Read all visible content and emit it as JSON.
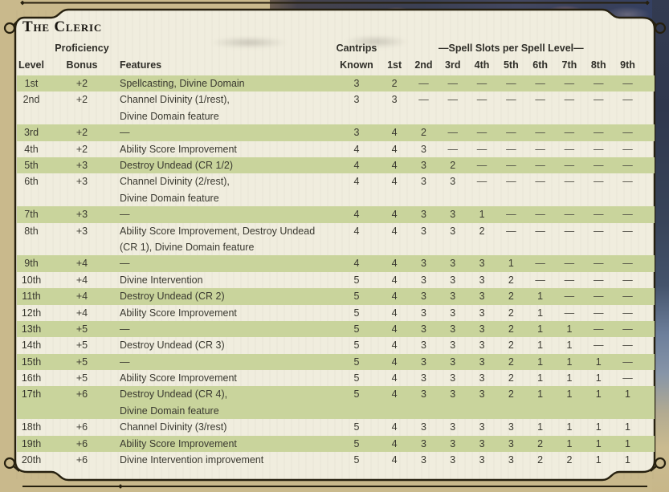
{
  "title": "The Cleric",
  "header": {
    "level": "Level",
    "proficiency": [
      "Proficiency",
      "Bonus"
    ],
    "features": "Features",
    "cantrips": [
      "Cantrips",
      "Known"
    ],
    "spell_slots_title": "—Spell Slots per Spell Level—",
    "slot_levels": [
      "1st",
      "2nd",
      "3rd",
      "4th",
      "5th",
      "6th",
      "7th",
      "8th",
      "9th"
    ]
  },
  "rows": [
    {
      "level": "1st",
      "bonus": "+2",
      "features": [
        "Spellcasting, Divine Domain"
      ],
      "cantrips": "3",
      "slots": [
        "2",
        "—",
        "—",
        "—",
        "—",
        "—",
        "—",
        "—",
        "—"
      ],
      "shaded": true
    },
    {
      "level": "2nd",
      "bonus": "+2",
      "features": [
        "Channel Divinity (1/rest),",
        "Divine Domain feature"
      ],
      "cantrips": "3",
      "slots": [
        "3",
        "—",
        "—",
        "—",
        "—",
        "—",
        "—",
        "—",
        "—"
      ],
      "shaded": false
    },
    {
      "level": "3rd",
      "bonus": "+2",
      "features": [
        "—"
      ],
      "cantrips": "3",
      "slots": [
        "4",
        "2",
        "—",
        "—",
        "—",
        "—",
        "—",
        "—",
        "—"
      ],
      "shaded": true
    },
    {
      "level": "4th",
      "bonus": "+2",
      "features": [
        "Ability Score Improvement"
      ],
      "cantrips": "4",
      "slots": [
        "4",
        "3",
        "—",
        "—",
        "—",
        "—",
        "—",
        "—",
        "—"
      ],
      "shaded": false
    },
    {
      "level": "5th",
      "bonus": "+3",
      "features": [
        "Destroy Undead (CR 1/2)"
      ],
      "cantrips": "4",
      "slots": [
        "4",
        "3",
        "2",
        "—",
        "—",
        "—",
        "—",
        "—",
        "—"
      ],
      "shaded": true
    },
    {
      "level": "6th",
      "bonus": "+3",
      "features": [
        "Channel Divinity (2/rest),",
        "Divine Domain feature"
      ],
      "cantrips": "4",
      "slots": [
        "4",
        "3",
        "3",
        "—",
        "—",
        "—",
        "—",
        "—",
        "—"
      ],
      "shaded": false
    },
    {
      "level": "7th",
      "bonus": "+3",
      "features": [
        "—"
      ],
      "cantrips": "4",
      "slots": [
        "4",
        "3",
        "3",
        "1",
        "—",
        "—",
        "—",
        "—",
        "—"
      ],
      "shaded": true
    },
    {
      "level": "8th",
      "bonus": "+3",
      "features": [
        "Ability Score Improvement, Destroy Undead",
        "(CR 1), Divine Domain feature"
      ],
      "cantrips": "4",
      "slots": [
        "4",
        "3",
        "3",
        "2",
        "—",
        "—",
        "—",
        "—",
        "—"
      ],
      "shaded": false
    },
    {
      "level": "9th",
      "bonus": "+4",
      "features": [
        "—"
      ],
      "cantrips": "4",
      "slots": [
        "4",
        "3",
        "3",
        "3",
        "1",
        "—",
        "—",
        "—",
        "—"
      ],
      "shaded": true
    },
    {
      "level": "10th",
      "bonus": "+4",
      "features": [
        "Divine Intervention"
      ],
      "cantrips": "5",
      "slots": [
        "4",
        "3",
        "3",
        "3",
        "2",
        "—",
        "—",
        "—",
        "—"
      ],
      "shaded": false
    },
    {
      "level": "11th",
      "bonus": "+4",
      "features": [
        "Destroy Undead (CR 2)"
      ],
      "cantrips": "5",
      "slots": [
        "4",
        "3",
        "3",
        "3",
        "2",
        "1",
        "—",
        "—",
        "—"
      ],
      "shaded": true
    },
    {
      "level": "12th",
      "bonus": "+4",
      "features": [
        "Ability Score Improvement"
      ],
      "cantrips": "5",
      "slots": [
        "4",
        "3",
        "3",
        "3",
        "2",
        "1",
        "—",
        "—",
        "—"
      ],
      "shaded": false
    },
    {
      "level": "13th",
      "bonus": "+5",
      "features": [
        "—"
      ],
      "cantrips": "5",
      "slots": [
        "4",
        "3",
        "3",
        "3",
        "2",
        "1",
        "1",
        "—",
        "—"
      ],
      "shaded": true
    },
    {
      "level": "14th",
      "bonus": "+5",
      "features": [
        "Destroy Undead (CR 3)"
      ],
      "cantrips": "5",
      "slots": [
        "4",
        "3",
        "3",
        "3",
        "2",
        "1",
        "1",
        "—",
        "—"
      ],
      "shaded": false
    },
    {
      "level": "15th",
      "bonus": "+5",
      "features": [
        "—"
      ],
      "cantrips": "5",
      "slots": [
        "4",
        "3",
        "3",
        "3",
        "2",
        "1",
        "1",
        "1",
        "—"
      ],
      "shaded": true
    },
    {
      "level": "16th",
      "bonus": "+5",
      "features": [
        "Ability Score Improvement"
      ],
      "cantrips": "5",
      "slots": [
        "4",
        "3",
        "3",
        "3",
        "2",
        "1",
        "1",
        "1",
        "—"
      ],
      "shaded": false
    },
    {
      "level": "17th",
      "bonus": "+6",
      "features": [
        "Destroy Undead (CR 4),",
        "Divine Domain feature"
      ],
      "cantrips": "5",
      "slots": [
        "4",
        "3",
        "3",
        "3",
        "2",
        "1",
        "1",
        "1",
        "1"
      ],
      "shaded": true
    },
    {
      "level": "18th",
      "bonus": "+6",
      "features": [
        "Channel Divinity (3/rest)"
      ],
      "cantrips": "5",
      "slots": [
        "4",
        "3",
        "3",
        "3",
        "3",
        "1",
        "1",
        "1",
        "1"
      ],
      "shaded": false
    },
    {
      "level": "19th",
      "bonus": "+6",
      "features": [
        "Ability Score Improvement"
      ],
      "cantrips": "5",
      "slots": [
        "4",
        "3",
        "3",
        "3",
        "3",
        "2",
        "1",
        "1",
        "1"
      ],
      "shaded": true
    },
    {
      "level": "20th",
      "bonus": "+6",
      "features": [
        "Divine Intervention improvement"
      ],
      "cantrips": "5",
      "slots": [
        "4",
        "3",
        "3",
        "3",
        "3",
        "2",
        "2",
        "1",
        "1"
      ],
      "shaded": false
    }
  ],
  "colors": {
    "row_highlight": "#c9d49c",
    "panel": "#f0edde",
    "page_background": "#c9b98c",
    "frame": "#26200f",
    "text": "#3a3930"
  }
}
